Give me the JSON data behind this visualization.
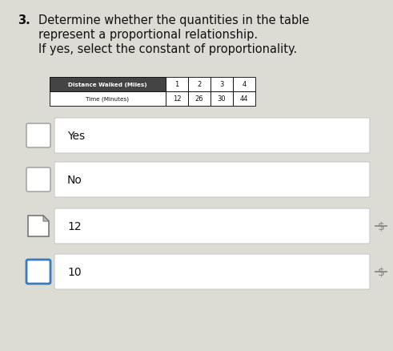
{
  "title_num": "3.",
  "title_line1": "Determine whether the quantities in the table",
  "title_line2": "represent a proportional relationship.",
  "title_line3": "If yes, select the constant of proportionality.",
  "table_col0_row0": "Distance Walked (Miles)",
  "table_col0_row1": "Time (Minutes)",
  "table_data_row0": [
    "1",
    "2",
    "3",
    "4"
  ],
  "table_data_row1": [
    "12",
    "26",
    "30",
    "44"
  ],
  "options": [
    "Yes",
    "No",
    "12",
    "10"
  ],
  "checkbox_styles": [
    "plain",
    "plain",
    "cursor",
    "selected"
  ],
  "bg_color": "#c8c8c0",
  "content_bg": "#dcdcd4",
  "white": "#ffffff",
  "table_header_bg": "#444444",
  "table_header_fg": "#ffffff",
  "table_cell_bg": "#ffffff",
  "box_border_color": "#cccccc",
  "checkbox_plain_color": "#999999",
  "checkbox_selected_color": "#3a7abf",
  "checkbox_cursor_color": "#777777",
  "strikethrough_color": "#888888",
  "text_color": "#111111"
}
